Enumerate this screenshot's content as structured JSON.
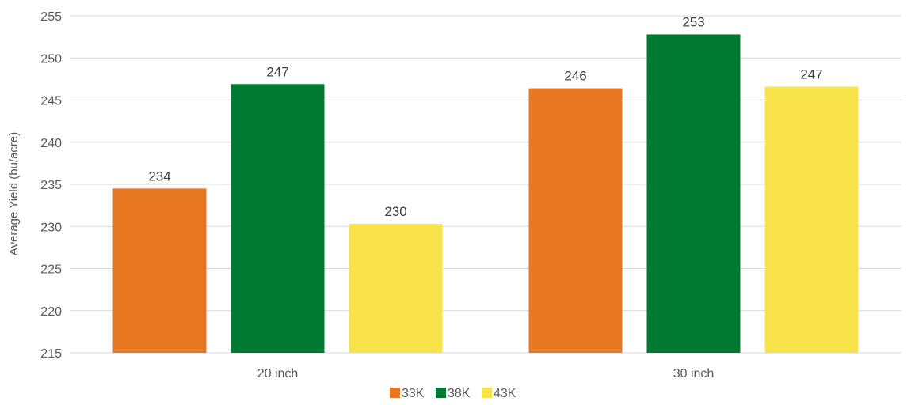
{
  "chart_data": {
    "type": "bar",
    "title": "",
    "xlabel": "",
    "ylabel": "Average Yield (bu/acre)",
    "categories": [
      "20 inch",
      "30 inch"
    ],
    "series": [
      {
        "name": "33K",
        "color": "#E87722",
        "values": [
          234.5,
          246.4
        ],
        "labels": [
          "234",
          "246"
        ]
      },
      {
        "name": "38K",
        "color": "#007A33",
        "values": [
          246.9,
          252.8
        ],
        "labels": [
          "247",
          "253"
        ]
      },
      {
        "name": "43K",
        "color": "#F8E34A",
        "values": [
          230.3,
          246.6
        ],
        "labels": [
          "230",
          "247"
        ]
      }
    ],
    "ylim": [
      215,
      255
    ],
    "yticks": [
      "215",
      "220",
      "225",
      "230",
      "235",
      "240",
      "245",
      "250",
      "255"
    ],
    "grid": true,
    "legend_position": "bottom-center"
  }
}
